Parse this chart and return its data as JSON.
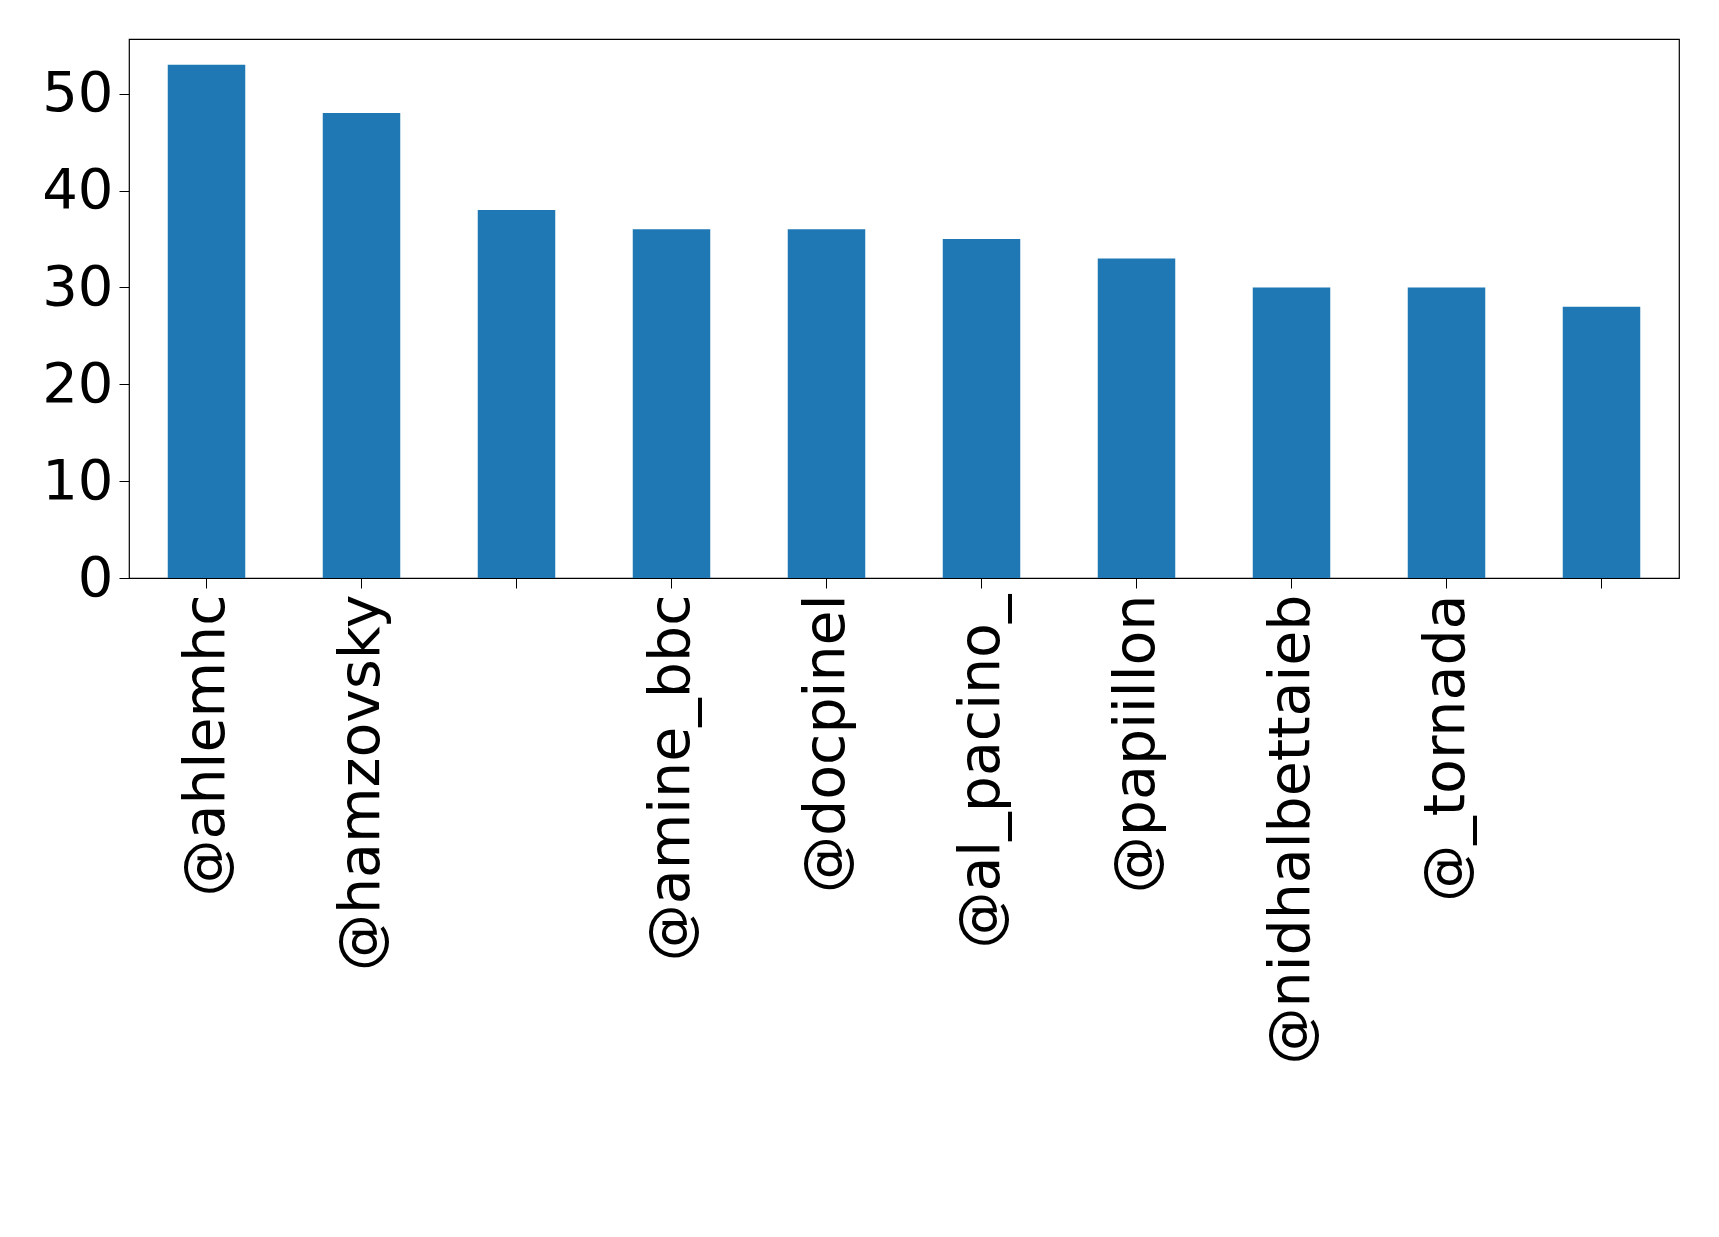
{
  "chart_data": {
    "type": "bar",
    "categories": [
      "@ahlemhc",
      "@hamzovsky",
      null,
      "@amine_bbc",
      "@docpinel",
      "@al_pacino_",
      "@papiillon",
      "@nidhalbettaieb",
      "@_tornada",
      null
    ],
    "values": [
      53,
      48,
      38,
      36,
      36,
      35,
      33,
      30,
      30,
      28
    ],
    "color": "#1f77b4",
    "ylim": [
      0,
      55.65
    ],
    "yticks": [
      0,
      10,
      20,
      30,
      40,
      50
    ],
    "grid": false
  }
}
